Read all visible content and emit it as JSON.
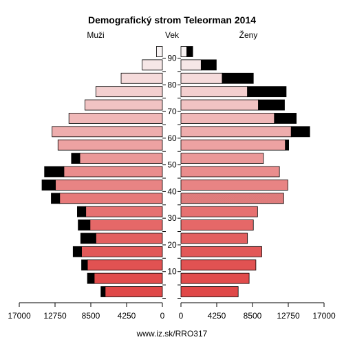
{
  "chart_data": {
    "type": "bar",
    "title": "Demografický strom Teleorman 2014",
    "left_label": "Muži",
    "center_label": "Vek",
    "right_label": "Ženy",
    "footer": "www.iz.sk/RRO317",
    "xlim": [
      0,
      17000
    ],
    "x_ticks": [
      0,
      4250,
      8500,
      12750,
      17000
    ],
    "age_ticks": [
      10,
      20,
      30,
      40,
      50,
      60,
      70,
      80,
      90
    ],
    "age_groups": [
      "0-4",
      "5-9",
      "10-14",
      "15-19",
      "20-24",
      "25-29",
      "30-34",
      "35-39",
      "40-44",
      "45-49",
      "50-54",
      "55-59",
      "60-64",
      "65-69",
      "70-74",
      "75-79",
      "80-84",
      "85-89",
      "90+"
    ],
    "series": [
      {
        "name": "Muži",
        "base": [
          6800,
          8100,
          8900,
          9600,
          7900,
          8600,
          9100,
          12200,
          12700,
          11700,
          9800,
          12400,
          13100,
          11100,
          9200,
          7900,
          4900,
          2400,
          700
        ],
        "excess": [
          500,
          800,
          700,
          1000,
          1800,
          1400,
          1000,
          1000,
          1600,
          2300,
          1000,
          0,
          0,
          0,
          0,
          0,
          0,
          0,
          0
        ]
      },
      {
        "name": "Ženy",
        "base": [
          6800,
          8100,
          8900,
          9600,
          7900,
          8600,
          9100,
          12200,
          12700,
          11700,
          9800,
          12400,
          13100,
          11100,
          9200,
          7900,
          4900,
          2400,
          700
        ],
        "excess": [
          0,
          0,
          0,
          0,
          0,
          0,
          0,
          0,
          0,
          0,
          0,
          400,
          2200,
          2600,
          3100,
          4600,
          3700,
          1800,
          700
        ]
      }
    ]
  },
  "colors": {
    "excess": "#000000",
    "young": "#e04848",
    "old": "#f8f3f3",
    "stripe": "#d08080"
  }
}
